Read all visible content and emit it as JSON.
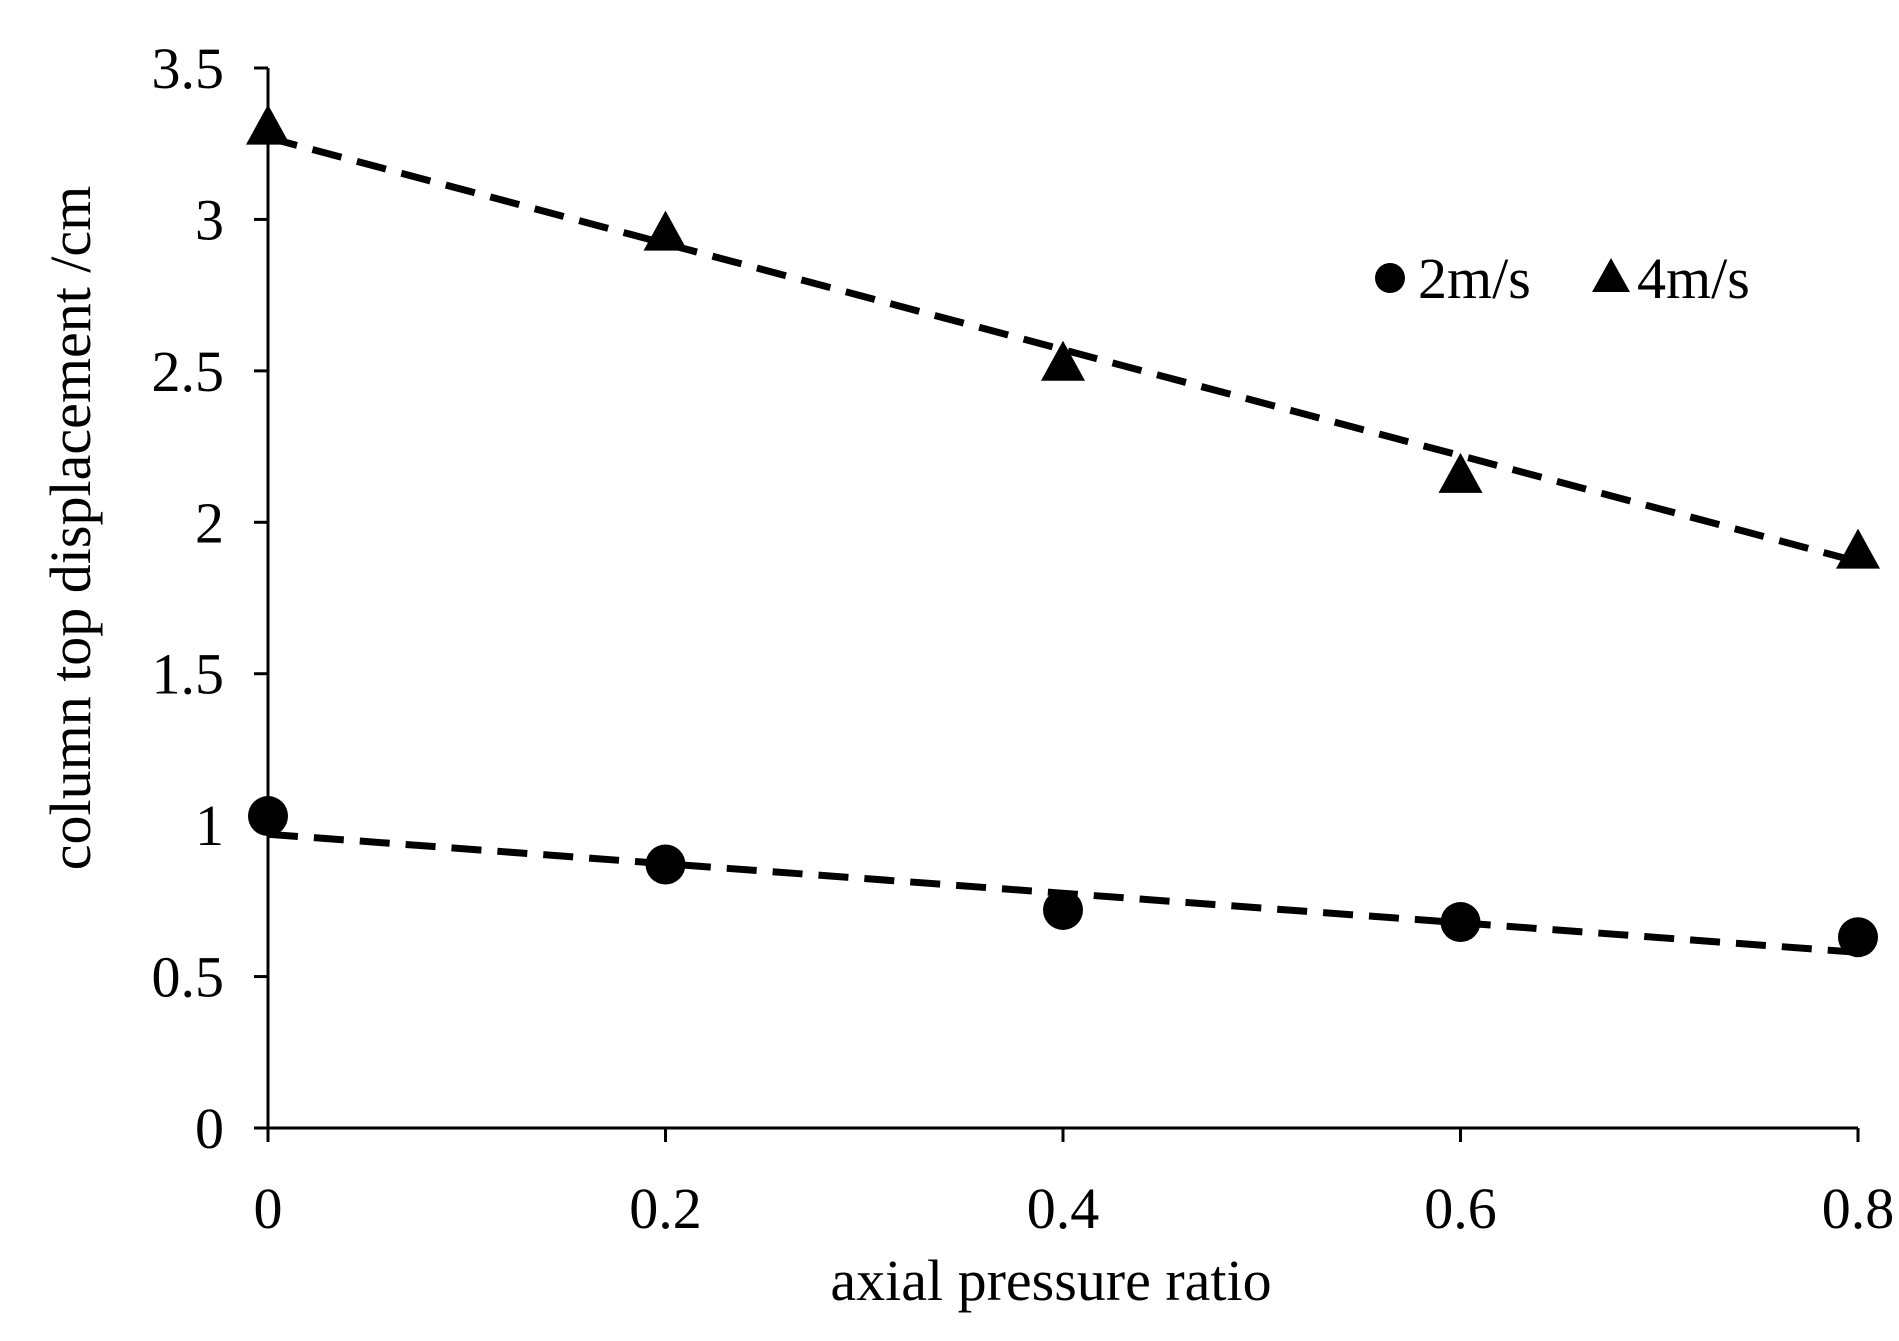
{
  "chart_data": {
    "type": "scatter",
    "title": "",
    "xlabel": "axial pressure ratio",
    "ylabel": "column top displacement /cm",
    "xlim": [
      0,
      0.8
    ],
    "ylim": [
      0,
      3.5
    ],
    "x_ticks": [
      "0",
      "0.2",
      "0.4",
      "0.6",
      "0.8"
    ],
    "y_ticks": [
      "0",
      "0.5",
      "1",
      "1.5",
      "2",
      "2.5",
      "3",
      "3.5"
    ],
    "grid": false,
    "legend_position": "top-right",
    "series": [
      {
        "name": "2m/s",
        "marker": "circle",
        "color": "#000000",
        "x": [
          0,
          0.2,
          0.4,
          0.6,
          0.8
        ],
        "y": [
          1.03,
          0.87,
          0.72,
          0.68,
          0.63
        ],
        "trendline": {
          "style": "dashed",
          "x": [
            0,
            0.8
          ],
          "y": [
            0.97,
            0.58
          ]
        }
      },
      {
        "name": "4m/s",
        "marker": "triangle",
        "color": "#000000",
        "x": [
          0,
          0.2,
          0.4,
          0.6,
          0.8
        ],
        "y": [
          3.3,
          2.95,
          2.52,
          2.15,
          1.9
        ],
        "trendline": {
          "style": "dashed",
          "x": [
            0,
            0.8
          ],
          "y": [
            3.27,
            1.87
          ]
        }
      }
    ]
  }
}
